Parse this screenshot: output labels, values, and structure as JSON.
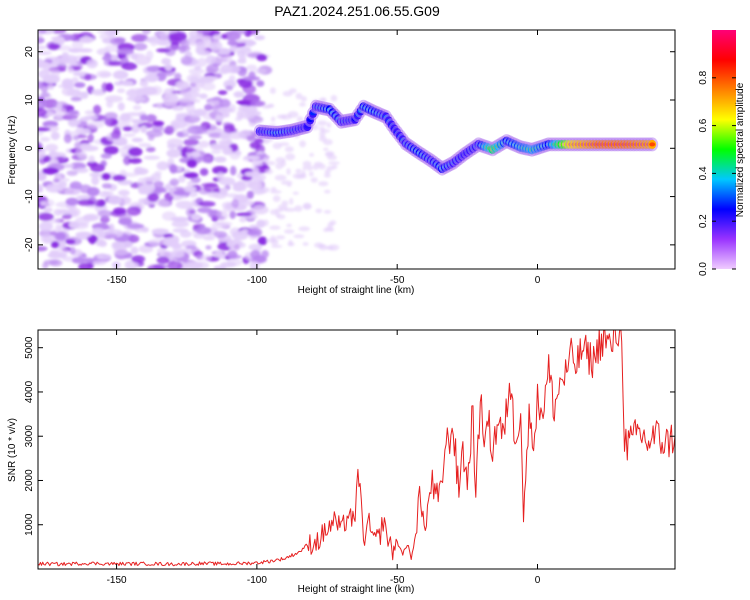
{
  "figure": {
    "title": "PAZ1.2024.251.06.55.G09"
  },
  "chart_data": [
    {
      "type": "heatmap",
      "xlabel": "Height of straight line (km)",
      "ylabel": "Frequency (Hz)",
      "xlim": [
        -178,
        49
      ],
      "ylim": [
        -25,
        24.5
      ],
      "xticks": [
        -150,
        -100,
        -50,
        0
      ],
      "yticks": [
        20,
        10,
        0,
        -10,
        -20
      ],
      "colorbar": {
        "label": "Normalized spectral amplitude",
        "range": [
          0,
          1
        ],
        "ticks": [
          "0.0",
          "0.2",
          "0.4",
          "0.6",
          "0.8"
        ],
        "tick_values": [
          0.0,
          0.2,
          0.4,
          0.6,
          0.8
        ],
        "colormap": [
          "#f0ccff",
          "#9933ff",
          "#0000ff",
          "#00c8ff",
          "#00ff00",
          "#ffff00",
          "#ff8000",
          "#ff0000",
          "#ff0077"
        ]
      },
      "noise_region_x": [
        -178,
        -97
      ],
      "signal_track": [
        {
          "x": -99,
          "y": 3.5,
          "amp": 0.25
        },
        {
          "x": -93,
          "y": 3.2,
          "amp": 0.35
        },
        {
          "x": -88,
          "y": 3.6,
          "amp": 0.3
        },
        {
          "x": -82,
          "y": 4.5,
          "amp": 0.22
        },
        {
          "x": -79,
          "y": 8.6,
          "amp": 0.3
        },
        {
          "x": -74,
          "y": 8.0,
          "amp": 0.35
        },
        {
          "x": -70,
          "y": 5.5,
          "amp": 0.3
        },
        {
          "x": -65,
          "y": 6.0,
          "amp": 0.25
        },
        {
          "x": -62,
          "y": 8.6,
          "amp": 0.35
        },
        {
          "x": -58,
          "y": 7.5,
          "amp": 0.35
        },
        {
          "x": -54,
          "y": 6.5,
          "amp": 0.3
        },
        {
          "x": -51,
          "y": 4.0,
          "amp": 0.25
        },
        {
          "x": -47,
          "y": 1.0,
          "amp": 0.3
        },
        {
          "x": -42,
          "y": -1.0,
          "amp": 0.35
        },
        {
          "x": -38,
          "y": -2.5,
          "amp": 0.3
        },
        {
          "x": -34,
          "y": -4.2,
          "amp": 0.35
        },
        {
          "x": -30,
          "y": -3.0,
          "amp": 0.3
        },
        {
          "x": -26,
          "y": -1.2,
          "amp": 0.25
        },
        {
          "x": -21,
          "y": 0.8,
          "amp": 0.3
        },
        {
          "x": -16,
          "y": -0.2,
          "amp": 0.55
        },
        {
          "x": -11,
          "y": 1.5,
          "amp": 0.35
        },
        {
          "x": -6,
          "y": 0.2,
          "amp": 0.4
        },
        {
          "x": -2,
          "y": -0.3,
          "amp": 0.45
        },
        {
          "x": 4,
          "y": 0.8,
          "amp": 0.35
        },
        {
          "x": 12,
          "y": 0.8,
          "amp": 0.75
        },
        {
          "x": 22,
          "y": 0.8,
          "amp": 0.85
        },
        {
          "x": 32,
          "y": 0.8,
          "amp": 0.85
        },
        {
          "x": 42,
          "y": 0.8,
          "amp": 0.8
        }
      ]
    },
    {
      "type": "line",
      "xlabel": "Height of straight line (km)",
      "ylabel": "SNR (10 * v/v)",
      "xlim": [
        -178,
        49
      ],
      "ylim": [
        0,
        5400
      ],
      "xticks": [
        -150,
        -100,
        -50,
        0
      ],
      "yticks": [
        1000,
        2000,
        3000,
        4000,
        5000
      ],
      "color": "#e62020",
      "series": [
        {
          "x": [
            -178,
            -170,
            -160,
            -150,
            -140,
            -130,
            -120,
            -110,
            -100,
            -95,
            -90,
            -85,
            -82,
            -78,
            -75,
            -72,
            -70,
            -67,
            -65,
            -64,
            -62,
            -60,
            -58,
            -56,
            -55,
            -52,
            -50,
            -48,
            -46,
            -45,
            -43,
            -42,
            -40,
            -38,
            -37,
            -35,
            -33,
            -30,
            -28,
            -27,
            -25,
            -23,
            -22,
            -20,
            -19,
            -18,
            -16,
            -14,
            -12,
            -10,
            -8,
            -6,
            -5,
            -3,
            -1,
            0,
            2,
            4,
            6,
            8,
            10,
            12,
            14,
            16,
            18,
            20,
            22,
            24,
            26,
            28,
            30,
            31,
            32,
            34,
            36,
            38,
            40,
            42,
            44,
            46,
            49
          ],
          "y": [
            120,
            110,
            130,
            115,
            120,
            110,
            125,
            115,
            140,
            180,
            240,
            380,
            550,
            650,
            900,
            1100,
            850,
            1300,
            900,
            2400,
            700,
            1000,
            600,
            800,
            1100,
            400,
            600,
            350,
            550,
            250,
            900,
            1800,
            800,
            2000,
            1700,
            1500,
            2700,
            3200,
            1600,
            2900,
            1900,
            3700,
            1500,
            4300,
            2400,
            3500,
            2700,
            3400,
            2900,
            4300,
            3000,
            3600,
            1200,
            3400,
            3000,
            3800,
            3600,
            4500,
            3600,
            4200,
            4400,
            4800,
            4600,
            5000,
            4800,
            4700,
            5100,
            5200,
            5000,
            5300,
            5400,
            3000,
            2800,
            2900,
            3100,
            2950,
            2850,
            3050,
            2900,
            2850,
            3000
          ]
        }
      ]
    }
  ]
}
